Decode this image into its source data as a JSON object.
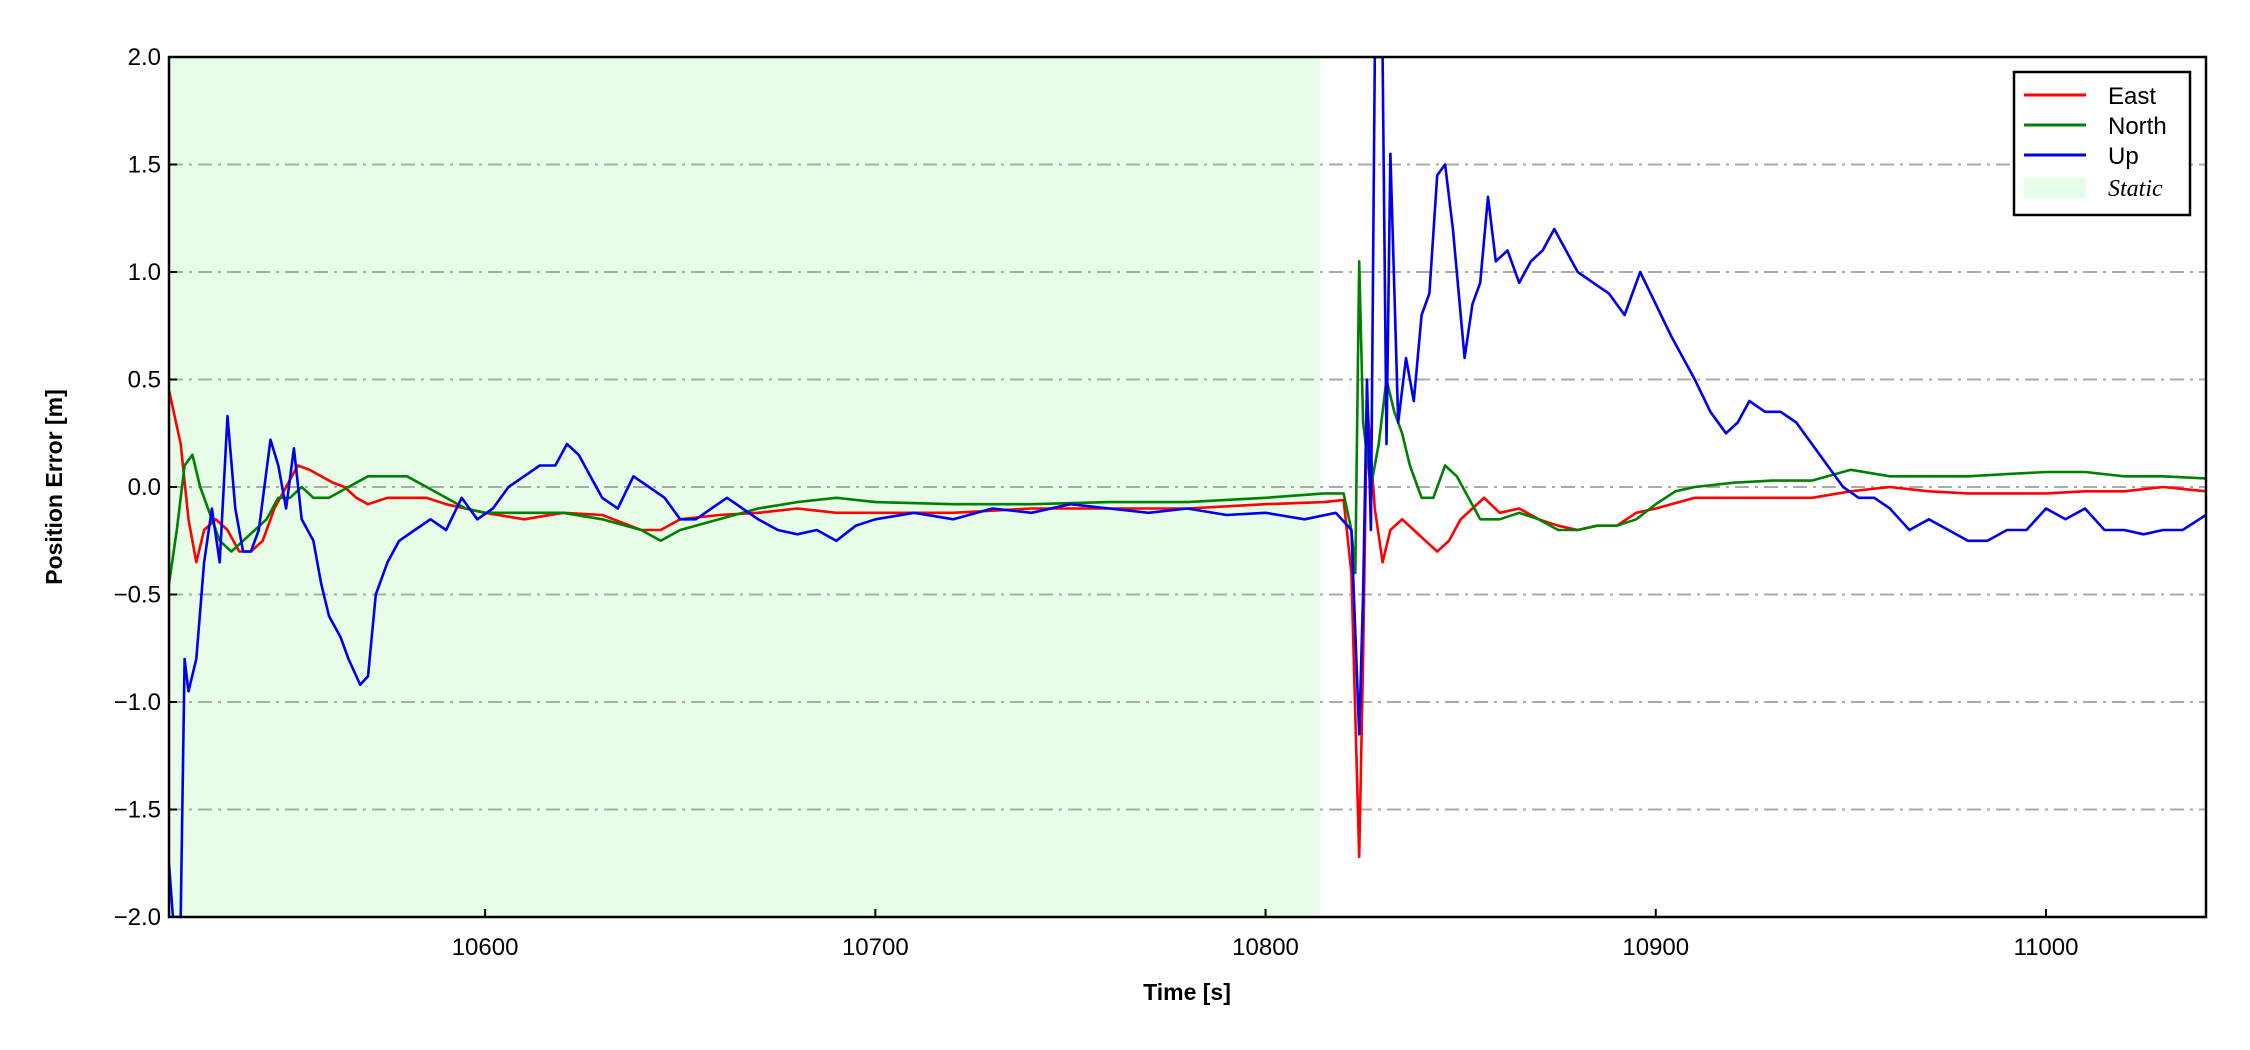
{
  "chart_data": {
    "type": "line",
    "title": "",
    "xlabel": "Time [s]",
    "ylabel": "Position Error [m]",
    "xlim": [
      10519,
      11041
    ],
    "ylim": [
      -2.0,
      2.0
    ],
    "xticks": [
      10600,
      10700,
      10800,
      10900,
      11000
    ],
    "xtick_labels": [
      "10600",
      "10700",
      "10800",
      "10900",
      "11000"
    ],
    "yticks": [
      -2.0,
      -1.5,
      -1.0,
      -0.5,
      0.0,
      0.5,
      1.0,
      1.5,
      2.0
    ],
    "ytick_labels": [
      "−2.0",
      "−1.5",
      "−1.0",
      "−0.5",
      "0.0",
      "0.5",
      "1.0",
      "1.5",
      "2.0"
    ],
    "grid": "horizontal dash-dot",
    "legend_placement": "top-right",
    "shaded_region": {
      "name": "Static",
      "x": [
        10519,
        10814
      ],
      "color": "#e8fde8"
    },
    "series": [
      {
        "name": "East",
        "color": "#ff0000",
        "x": [
          10519,
          10522,
          10524,
          10526,
          10528,
          10531,
          10534,
          10537,
          10540,
          10543,
          10546,
          10549,
          10552,
          10555,
          10558,
          10561,
          10564,
          10567,
          10570,
          10575,
          10580,
          10585,
          10590,
          10595,
          10600,
          10610,
          10620,
          10630,
          10640,
          10645,
          10650,
          10660,
          10670,
          10680,
          10690,
          10700,
          10720,
          10740,
          10760,
          10780,
          10800,
          10815,
          10820,
          10822,
          10824,
          10825,
          10826,
          10828,
          10830,
          10832,
          10835,
          10838,
          10841,
          10844,
          10847,
          10850,
          10853,
          10856,
          10860,
          10865,
          10870,
          10875,
          10880,
          10885,
          10890,
          10895,
          10900,
          10910,
          10920,
          10930,
          10940,
          10950,
          10960,
          10970,
          10980,
          10990,
          11000,
          11010,
          11020,
          11030,
          11041
        ],
        "y": [
          0.45,
          0.2,
          -0.15,
          -0.35,
          -0.2,
          -0.15,
          -0.2,
          -0.3,
          -0.3,
          -0.25,
          -0.1,
          0.0,
          0.1,
          0.08,
          0.05,
          0.02,
          0.0,
          -0.05,
          -0.08,
          -0.05,
          -0.05,
          -0.05,
          -0.08,
          -0.1,
          -0.12,
          -0.15,
          -0.12,
          -0.13,
          -0.2,
          -0.2,
          -0.15,
          -0.13,
          -0.12,
          -0.1,
          -0.12,
          -0.12,
          -0.12,
          -0.1,
          -0.1,
          -0.1,
          -0.08,
          -0.07,
          -0.06,
          -0.4,
          -1.72,
          -0.8,
          0.4,
          -0.1,
          -0.35,
          -0.2,
          -0.15,
          -0.2,
          -0.25,
          -0.3,
          -0.25,
          -0.15,
          -0.1,
          -0.05,
          -0.12,
          -0.1,
          -0.15,
          -0.18,
          -0.2,
          -0.18,
          -0.18,
          -0.12,
          -0.1,
          -0.05,
          -0.05,
          -0.05,
          -0.05,
          -0.02,
          0.0,
          -0.02,
          -0.03,
          -0.03,
          -0.03,
          -0.02,
          -0.02,
          0.0,
          -0.02
        ]
      },
      {
        "name": "North",
        "color": "#008000",
        "x": [
          10519,
          10521,
          10523,
          10525,
          10527,
          10529,
          10532,
          10535,
          10538,
          10541,
          10544,
          10547,
          10550,
          10553,
          10556,
          10560,
          10565,
          10570,
          10575,
          10580,
          10585,
          10590,
          10595,
          10600,
          10610,
          10620,
          10630,
          10640,
          10645,
          10650,
          10660,
          10670,
          10680,
          10690,
          10700,
          10720,
          10740,
          10760,
          10780,
          10800,
          10815,
          10820,
          10822,
          10823,
          10824,
          10825,
          10827,
          10829,
          10831,
          10833,
          10835,
          10837,
          10840,
          10843,
          10846,
          10849,
          10852,
          10855,
          10860,
          10865,
          10870,
          10875,
          10880,
          10885,
          10890,
          10895,
          10900,
          10905,
          10910,
          10920,
          10930,
          10940,
          10950,
          10960,
          10970,
          10980,
          10990,
          11000,
          11010,
          11020,
          11030,
          11041
        ],
        "y": [
          -0.45,
          -0.2,
          0.1,
          0.15,
          0.0,
          -0.1,
          -0.25,
          -0.3,
          -0.25,
          -0.2,
          -0.15,
          -0.05,
          -0.05,
          0.0,
          -0.05,
          -0.05,
          0.0,
          0.05,
          0.05,
          0.05,
          0.0,
          -0.05,
          -0.1,
          -0.12,
          -0.12,
          -0.12,
          -0.15,
          -0.2,
          -0.25,
          -0.2,
          -0.15,
          -0.1,
          -0.07,
          -0.05,
          -0.07,
          -0.08,
          -0.08,
          -0.07,
          -0.07,
          -0.05,
          -0.03,
          -0.03,
          -0.2,
          -0.4,
          1.05,
          0.3,
          0.0,
          0.2,
          0.5,
          0.35,
          0.25,
          0.1,
          -0.05,
          -0.05,
          0.1,
          0.05,
          -0.05,
          -0.15,
          -0.15,
          -0.12,
          -0.15,
          -0.2,
          -0.2,
          -0.18,
          -0.18,
          -0.15,
          -0.08,
          -0.02,
          0.0,
          0.02,
          0.03,
          0.03,
          0.08,
          0.05,
          0.05,
          0.05,
          0.06,
          0.07,
          0.07,
          0.05,
          0.05,
          0.04
        ]
      },
      {
        "name": "Up",
        "color": "#0000ee",
        "x": [
          10519,
          10520,
          10522,
          10523,
          10524,
          10526,
          10528,
          10530,
          10532,
          10534,
          10536,
          10538,
          10540,
          10542,
          10545,
          10547,
          10549,
          10551,
          10553,
          10556,
          10558,
          10560,
          10563,
          10565,
          10568,
          10570,
          10572,
          10575,
          10578,
          10582,
          10586,
          10590,
          10594,
          10598,
          10602,
          10606,
          10610,
          10614,
          10618,
          10621,
          10624,
          10627,
          10630,
          10634,
          10638,
          10642,
          10646,
          10650,
          10654,
          10658,
          10662,
          10666,
          10670,
          10675,
          10680,
          10685,
          10690,
          10695,
          10700,
          10710,
          10720,
          10730,
          10740,
          10750,
          10760,
          10770,
          10780,
          10790,
          10800,
          10810,
          10818,
          10822,
          10824,
          10825,
          10826,
          10827,
          10828,
          10830,
          10831,
          10832,
          10834,
          10836,
          10838,
          10840,
          10842,
          10844,
          10846,
          10848,
          10850,
          10851,
          10853,
          10855,
          10857,
          10859,
          10862,
          10865,
          10868,
          10871,
          10874,
          10877,
          10880,
          10884,
          10888,
          10892,
          10896,
          10900,
          10904,
          10907,
          10910,
          10914,
          10918,
          10921,
          10924,
          10928,
          10932,
          10936,
          10940,
          10944,
          10948,
          10952,
          10956,
          10960,
          10965,
          10970,
          10975,
          10980,
          10985,
          10990,
          10995,
          11000,
          11005,
          11010,
          11015,
          11020,
          11025,
          11030,
          11035,
          11041
        ],
        "y": [
          -1.75,
          -2.0,
          -2.0,
          -0.8,
          -0.95,
          -0.8,
          -0.35,
          -0.1,
          -0.35,
          0.33,
          -0.1,
          -0.3,
          -0.3,
          -0.2,
          0.22,
          0.1,
          -0.1,
          0.18,
          -0.15,
          -0.25,
          -0.45,
          -0.6,
          -0.7,
          -0.8,
          -0.92,
          -0.88,
          -0.5,
          -0.35,
          -0.25,
          -0.2,
          -0.15,
          -0.2,
          -0.05,
          -0.15,
          -0.1,
          0.0,
          0.05,
          0.1,
          0.1,
          0.2,
          0.15,
          0.05,
          -0.05,
          -0.1,
          0.05,
          0.0,
          -0.05,
          -0.15,
          -0.15,
          -0.1,
          -0.05,
          -0.1,
          -0.15,
          -0.2,
          -0.22,
          -0.2,
          -0.25,
          -0.18,
          -0.15,
          -0.12,
          -0.15,
          -0.1,
          -0.12,
          -0.08,
          -0.1,
          -0.12,
          -0.1,
          -0.13,
          -0.12,
          -0.15,
          -0.12,
          -0.2,
          -1.15,
          -0.5,
          0.5,
          -0.2,
          2.0,
          2.0,
          0.2,
          1.55,
          0.3,
          0.6,
          0.4,
          0.8,
          0.9,
          1.45,
          1.5,
          1.2,
          0.8,
          0.6,
          0.85,
          0.95,
          1.35,
          1.05,
          1.1,
          0.95,
          1.05,
          1.1,
          1.2,
          1.1,
          1.0,
          0.95,
          0.9,
          0.8,
          1.0,
          0.85,
          0.7,
          0.6,
          0.5,
          0.35,
          0.25,
          0.3,
          0.4,
          0.35,
          0.35,
          0.3,
          0.2,
          0.1,
          0.0,
          -0.05,
          -0.05,
          -0.1,
          -0.2,
          -0.15,
          -0.2,
          -0.25,
          -0.25,
          -0.2,
          -0.2,
          -0.1,
          -0.15,
          -0.1,
          -0.2,
          -0.2,
          -0.22,
          -0.2,
          -0.2,
          -0.13
        ]
      }
    ]
  }
}
